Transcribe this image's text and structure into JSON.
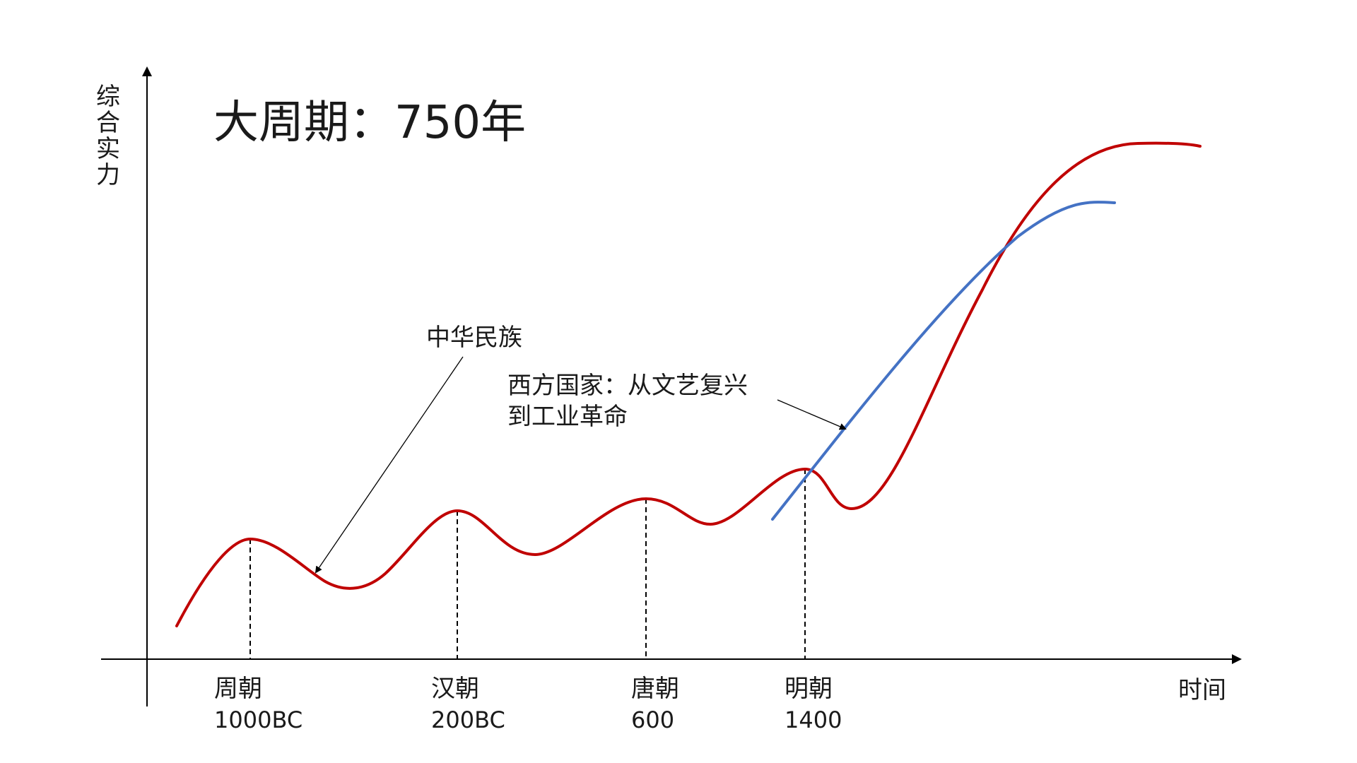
{
  "title": "大周期：750年",
  "y_axis_label": "综合实力",
  "x_axis_label": "时间",
  "dynasties": [
    {
      "name": "周朝",
      "year": "1000BC"
    },
    {
      "name": "汉朝",
      "year": "200BC"
    },
    {
      "name": "唐朝",
      "year": "600"
    },
    {
      "name": "明朝",
      "year": "1400"
    }
  ],
  "callouts": {
    "china": "中华民族",
    "west_line1": "西方国家：从文艺复兴",
    "west_line2": "到工业革命"
  },
  "colors": {
    "china_curve": "#C00000",
    "west_curve": "#4472C4",
    "axis": "#000000"
  }
}
